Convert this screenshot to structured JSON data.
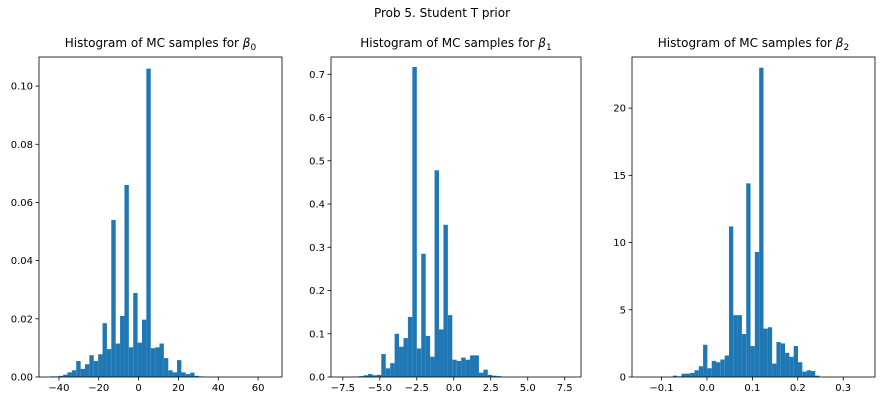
{
  "figure": {
    "suptitle": "Prob 5. Student T prior",
    "bar_color": "#1f77b4"
  },
  "chart_data": [
    {
      "type": "bar",
      "title_prefix": "Histogram of MC samples for ",
      "title_symbol": "β",
      "title_subscript": "0",
      "xlim": [
        -50,
        72
      ],
      "ylim": [
        0,
        0.11
      ],
      "xticks": [
        -40,
        -20,
        0,
        20,
        40,
        60
      ],
      "xtick_labels": [
        "−40",
        "−20",
        "0",
        "20",
        "40",
        "60"
      ],
      "yticks": [
        0,
        0.02,
        0.04,
        0.06,
        0.08,
        0.1
      ],
      "ytick_labels": [
        "0.00",
        "0.02",
        "0.04",
        "0.06",
        "0.08",
        "0.10"
      ],
      "bins": {
        "start": -44.5,
        "width": 2.2
      },
      "values": [
        0.0002,
        0.0002,
        0.0004,
        0.0008,
        0.0016,
        0.0023,
        0.0055,
        0.0028,
        0.0044,
        0.0075,
        0.0055,
        0.0078,
        0.0185,
        0.0096,
        0.054,
        0.0115,
        0.021,
        0.066,
        0.0102,
        0.0289,
        0.0118,
        0.0197,
        0.106,
        0.0099,
        0.0102,
        0.0115,
        0.0065,
        0.0023,
        0.0016,
        0.0058,
        0.0016,
        0.001,
        0.0015,
        0.0004,
        0.0002
      ]
    },
    {
      "type": "bar",
      "title_prefix": "Histogram of MC samples for ",
      "title_symbol": "β",
      "title_subscript": "1",
      "xlim": [
        -8.3,
        8.6
      ],
      "ylim": [
        0,
        0.74
      ],
      "xticks": [
        -7.5,
        -5.0,
        -2.5,
        0.0,
        2.5,
        5.0,
        7.5
      ],
      "xtick_labels": [
        "−7.5",
        "−5.0",
        "−2.5",
        "0.0",
        "2.5",
        "5.0",
        "7.5"
      ],
      "yticks": [
        0,
        0.1,
        0.2,
        0.3,
        0.4,
        0.5,
        0.6,
        0.7
      ],
      "ytick_labels": [
        "0.0",
        "0.1",
        "0.2",
        "0.3",
        "0.4",
        "0.5",
        "0.6",
        "0.7"
      ],
      "bins": {
        "start": -7.0,
        "width": 0.3
      },
      "values": [
        0.001,
        0.001,
        0.002,
        0.004,
        0.007,
        0.004,
        0.005,
        0.053,
        0.02,
        0.032,
        0.1,
        0.07,
        0.09,
        0.139,
        0.717,
        0.066,
        0.285,
        0.095,
        0.047,
        0.478,
        0.11,
        0.352,
        0.143,
        0.04,
        0.037,
        0.045,
        0.04,
        0.05,
        0.05,
        0.01,
        0.017,
        0.005,
        0.003,
        0.002
      ]
    },
    {
      "type": "bar",
      "title_prefix": "Histogram of MC samples for ",
      "title_symbol": "β",
      "title_subscript": "2",
      "xlim": [
        -0.165,
        0.37
      ],
      "ylim": [
        0,
        23.8
      ],
      "xticks": [
        -0.1,
        0.0,
        0.1,
        0.2,
        0.3
      ],
      "xtick_labels": [
        "−0.1",
        "0.0",
        "0.1",
        "0.2",
        "0.3"
      ],
      "yticks": [
        0,
        5,
        10,
        15,
        20
      ],
      "ytick_labels": [
        "0",
        "5",
        "10",
        "15",
        "20"
      ],
      "bins": {
        "start": -0.075,
        "width": 0.0095
      },
      "values": [
        0.1,
        0.05,
        0.25,
        0.25,
        0.3,
        0.5,
        0.8,
        2.4,
        0.65,
        1.2,
        1.1,
        1.3,
        1.6,
        11.2,
        4.6,
        4.6,
        3.2,
        14.4,
        2.3,
        9.3,
        23.0,
        3.6,
        3.7,
        1.0,
        2.6,
        2.5,
        1.8,
        1.5,
        2.3,
        1.1,
        0.4,
        0.5,
        0.45,
        0.1
      ]
    }
  ]
}
